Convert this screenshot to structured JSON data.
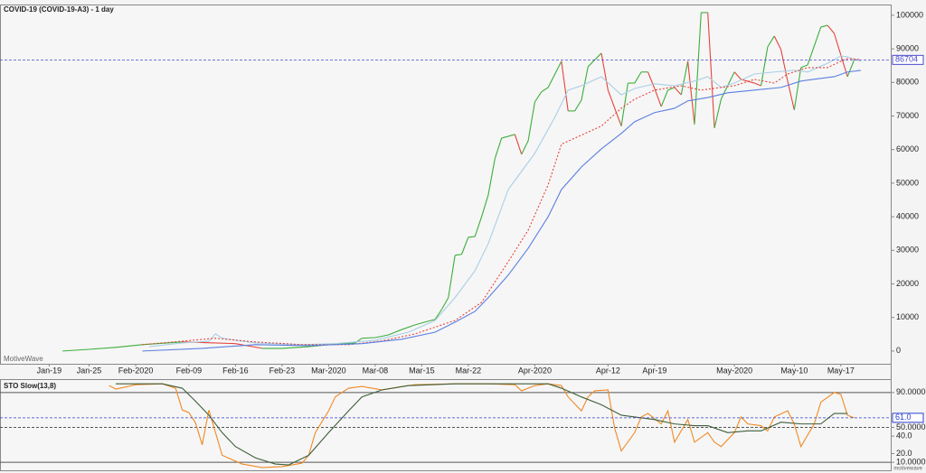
{
  "chart_data": [
    {
      "type": "line",
      "title": "COVID-19 (COVID-19-A3) - 1 day",
      "watermark": "MotiveWave",
      "xlim": [
        -7.4,
        126.5
      ],
      "xticks": [
        {
          "value": 0,
          "label": "Jan-19"
        },
        {
          "value": 6,
          "label": "Jan-25"
        },
        {
          "value": 13,
          "label": "Feb-2020"
        },
        {
          "value": 21,
          "label": "Feb-09"
        },
        {
          "value": 28,
          "label": "Feb-16"
        },
        {
          "value": 35,
          "label": "Feb-23"
        },
        {
          "value": 42,
          "label": "Mar-2020"
        },
        {
          "value": 49,
          "label": "Mar-08"
        },
        {
          "value": 56,
          "label": "Mar-15"
        },
        {
          "value": 63,
          "label": "Mar-22"
        },
        {
          "value": 73,
          "label": "Apr-2020"
        },
        {
          "value": 84,
          "label": "Apr-12"
        },
        {
          "value": 91,
          "label": "Apr-19"
        },
        {
          "value": 103,
          "label": "May-2020"
        },
        {
          "value": 112,
          "label": "May-10"
        },
        {
          "value": 119,
          "label": "May-17"
        }
      ],
      "ylim": [
        -3800,
        103200
      ],
      "yticks": [
        0,
        10000,
        20000,
        30000,
        40000,
        50000,
        60000,
        70000,
        80000,
        90000,
        100000
      ],
      "last_value": 86704,
      "last_value_color": "#4a4ad0",
      "series": [
        {
          "up_color": "#3cae3c",
          "down_color": "#e5443a",
          "x": [
            2,
            6,
            10,
            14,
            20,
            25,
            28,
            32,
            35,
            39,
            43,
            46,
            47,
            49,
            51,
            53,
            55,
            57,
            58,
            59,
            60,
            61,
            62,
            63,
            64,
            65,
            66,
            67,
            68,
            70,
            71,
            72,
            73,
            74,
            75,
            77,
            78,
            79,
            80,
            81,
            83,
            84,
            86,
            87,
            88,
            89,
            90,
            91,
            92,
            93,
            94,
            95,
            96,
            97,
            98,
            99,
            100,
            101,
            103,
            104,
            106,
            107,
            108,
            109,
            110,
            111,
            112,
            113,
            114,
            116,
            117,
            118,
            120,
            121
          ],
          "values": [
            0,
            500,
            1100,
            1900,
            2700,
            2400,
            2200,
            800,
            800,
            1300,
            2100,
            2400,
            3800,
            4000,
            4800,
            6400,
            7800,
            8900,
            9400,
            12400,
            15900,
            28500,
            28800,
            33900,
            34100,
            40000,
            46500,
            57300,
            63400,
            64500,
            58600,
            62600,
            74200,
            77200,
            78500,
            86300,
            71500,
            71500,
            74700,
            84700,
            88700,
            77700,
            67000,
            79800,
            79800,
            83100,
            83100,
            78200,
            72800,
            77700,
            78500,
            76300,
            86300,
            67500,
            100800,
            100800,
            66400,
            75000,
            83100,
            80900,
            79800,
            79000,
            90600,
            93800,
            89800,
            80400,
            71800,
            84400,
            85200,
            96500,
            97000,
            94600,
            81700,
            86700
          ]
        },
        {
          "color": "#a9cfe6",
          "x": [
            15,
            20,
            24,
            25,
            26,
            31,
            38,
            43,
            49,
            54,
            58,
            61,
            64,
            66,
            69,
            71,
            73,
            76,
            78,
            80,
            83,
            86,
            88,
            91,
            94,
            97,
            99,
            101,
            103,
            106,
            109,
            112,
            114,
            117,
            119,
            120,
            122
          ],
          "values": [
            1300,
            2400,
            2900,
            5100,
            3800,
            2400,
            1900,
            2200,
            3200,
            5600,
            9100,
            15900,
            23900,
            32000,
            48100,
            53500,
            58900,
            69600,
            77700,
            79000,
            81700,
            76300,
            78200,
            79600,
            79000,
            80400,
            81700,
            78500,
            79800,
            82500,
            83100,
            83600,
            83100,
            85700,
            87900,
            87600,
            86300
          ]
        },
        {
          "color": "#e5443a",
          "dashed": true,
          "x": [
            14,
            25,
            31,
            38,
            45,
            50,
            55,
            61,
            65,
            69,
            72,
            75,
            77,
            80,
            83,
            86,
            88,
            91,
            95,
            98,
            101,
            103,
            106,
            109,
            111,
            114,
            117,
            119,
            120,
            122
          ],
          "values": [
            1900,
            3800,
            2700,
            1900,
            1900,
            3000,
            5100,
            9100,
            14500,
            26600,
            36000,
            49500,
            61600,
            64300,
            67000,
            72300,
            75000,
            77700,
            79000,
            77700,
            78500,
            79000,
            80900,
            79800,
            82500,
            84400,
            84400,
            86300,
            87100,
            86800
          ]
        },
        {
          "color": "#5b7fe0",
          "x": [
            14,
            23,
            31,
            39,
            47,
            53,
            58,
            61,
            64,
            66,
            69,
            72,
            75,
            77,
            80,
            83,
            86,
            88,
            91,
            94,
            96,
            99,
            102,
            106,
            110,
            113,
            116,
            118,
            120,
            122
          ],
          "values": [
            0,
            800,
            1900,
            1600,
            2200,
            3500,
            5600,
            8600,
            11800,
            15900,
            22600,
            30600,
            40000,
            48100,
            54800,
            60200,
            64800,
            68300,
            71000,
            72300,
            74500,
            75500,
            76900,
            77700,
            78500,
            80400,
            81200,
            81700,
            83100,
            83600
          ]
        }
      ]
    },
    {
      "type": "line",
      "title": "STO Slow(13,8)",
      "xlim": [
        -7.4,
        126.5
      ],
      "ylim": [
        0.8,
        105.4
      ],
      "yticks": [
        {
          "value": 90,
          "label": "90.0000"
        },
        {
          "value": 50,
          "label": "50.0000"
        },
        {
          "value": 40,
          "label": "40.0"
        },
        {
          "value": 20,
          "label": "20.0"
        },
        {
          "value": 10,
          "label": "10.0000"
        }
      ],
      "solid_levels": [
        90,
        10
      ],
      "dashed_levels": [
        50
      ],
      "last_value": {
        "value": 61,
        "label": "61.0"
      },
      "last_value_color": "#2c3fd0",
      "series": [
        {
          "color": "#f08a24",
          "x": [
            9,
            10,
            13,
            17,
            19,
            20,
            21,
            22,
            23,
            24,
            25,
            26,
            29,
            32,
            35,
            38,
            39,
            40,
            42,
            43,
            45,
            47,
            50,
            53,
            55,
            61,
            66,
            70,
            71,
            73,
            75,
            77,
            78,
            80,
            81,
            82,
            84,
            85,
            86,
            88,
            89,
            90,
            92,
            93,
            94,
            96,
            97,
            99,
            100,
            101,
            103,
            104,
            105,
            107,
            108,
            109,
            111,
            112,
            113,
            115,
            116,
            118,
            119,
            120,
            121
          ],
          "values": [
            98,
            94,
            99,
            100,
            95,
            70,
            67,
            55,
            30,
            70,
            44,
            18,
            8,
            4,
            5,
            9,
            18,
            44,
            69,
            85,
            95,
            97,
            93,
            97,
            99,
            100,
            100,
            99,
            92,
            98,
            100,
            98,
            85,
            69,
            85,
            92,
            93,
            49,
            23,
            44,
            62,
            66,
            54,
            69,
            33,
            59,
            33,
            44,
            33,
            28,
            44,
            62,
            54,
            52,
            46,
            62,
            69,
            54,
            28,
            54,
            79,
            90,
            88,
            64,
            61
          ]
        },
        {
          "color": "#3f5f3a",
          "x": [
            10,
            17,
            20,
            22,
            24,
            26,
            28,
            31,
            34,
            36,
            39,
            42,
            45,
            47,
            50,
            54,
            61,
            69,
            75,
            77,
            80,
            83,
            86,
            88,
            91,
            94,
            97,
            99,
            102,
            105,
            107,
            110,
            113,
            116,
            118,
            120
          ],
          "values": [
            100,
            100,
            95,
            80,
            64,
            44,
            28,
            15,
            8,
            7,
            18,
            44,
            69,
            85,
            93,
            98,
            100,
            100,
            100,
            95,
            85,
            76,
            64,
            62,
            59,
            54,
            52,
            52,
            44,
            46,
            46,
            56,
            54,
            54,
            66,
            66
          ]
        }
      ]
    }
  ],
  "footer": "motivewave"
}
